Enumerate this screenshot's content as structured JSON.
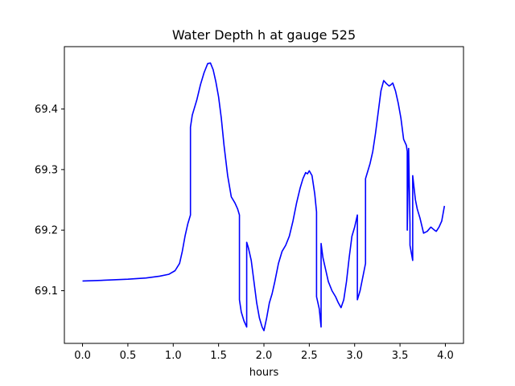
{
  "chart_data": {
    "type": "line",
    "title": "Water Depth h at gauge 525",
    "xlabel": "hours",
    "ylabel": "",
    "xlim": [
      -0.2,
      4.2
    ],
    "ylim": [
      69.013,
      69.503
    ],
    "xticks": [
      0.0,
      0.5,
      1.0,
      1.5,
      2.0,
      2.5,
      3.0,
      3.5,
      4.0
    ],
    "xtick_labels": [
      "0.0",
      "0.5",
      "1.0",
      "1.5",
      "2.0",
      "2.5",
      "3.0",
      "3.5",
      "4.0"
    ],
    "yticks": [
      69.1,
      69.2,
      69.3,
      69.4
    ],
    "ytick_labels": [
      "69.1",
      "69.2",
      "69.3",
      "69.4"
    ],
    "grid": false,
    "legend": false,
    "series": [
      {
        "color": "#0000ff",
        "x": [
          0.0,
          0.2,
          0.5,
          0.7,
          0.85,
          0.95,
          1.02,
          1.07,
          1.1,
          1.13,
          1.16,
          1.19,
          1.19,
          1.21,
          1.23,
          1.26,
          1.3,
          1.34,
          1.38,
          1.41,
          1.44,
          1.47,
          1.5,
          1.53,
          1.56,
          1.6,
          1.64,
          1.68,
          1.71,
          1.73,
          1.73,
          1.75,
          1.78,
          1.81,
          1.81,
          1.83,
          1.86,
          1.89,
          1.92,
          1.95,
          1.98,
          2.0,
          2.03,
          2.06,
          2.09,
          2.12,
          2.16,
          2.2,
          2.24,
          2.28,
          2.32,
          2.36,
          2.4,
          2.43,
          2.46,
          2.48,
          2.5,
          2.53,
          2.56,
          2.58,
          2.58,
          2.61,
          2.63,
          2.63,
          2.65,
          2.68,
          2.71,
          2.75,
          2.79,
          2.82,
          2.85,
          2.88,
          2.91,
          2.94,
          2.97,
          3.0,
          3.03,
          3.03,
          3.06,
          3.1,
          3.12,
          3.12,
          3.14,
          3.17,
          3.2,
          3.23,
          3.26,
          3.29,
          3.32,
          3.35,
          3.38,
          3.4,
          3.42,
          3.45,
          3.48,
          3.51,
          3.54,
          3.57,
          3.58,
          3.58,
          3.595,
          3.61,
          3.61,
          3.64,
          3.64,
          3.655,
          3.67,
          3.69,
          3.72,
          3.76,
          3.8,
          3.84,
          3.88,
          3.9,
          3.93,
          3.96,
          3.99
        ],
        "values": [
          69.116,
          69.117,
          69.119,
          69.121,
          69.124,
          69.127,
          69.133,
          69.145,
          69.165,
          69.19,
          69.21,
          69.225,
          69.37,
          69.39,
          69.4,
          69.415,
          69.44,
          69.46,
          69.475,
          69.476,
          69.465,
          69.445,
          69.42,
          69.385,
          69.34,
          69.29,
          69.255,
          69.245,
          69.235,
          69.225,
          69.085,
          69.065,
          69.05,
          69.04,
          69.18,
          69.17,
          69.15,
          69.115,
          69.08,
          69.055,
          69.04,
          69.034,
          69.055,
          69.08,
          69.095,
          69.115,
          69.145,
          69.165,
          69.175,
          69.19,
          69.215,
          69.245,
          69.27,
          69.285,
          69.295,
          69.293,
          69.298,
          69.29,
          69.26,
          69.23,
          69.09,
          69.07,
          69.04,
          69.178,
          69.155,
          69.135,
          69.115,
          69.1,
          69.09,
          69.08,
          69.072,
          69.085,
          69.115,
          69.155,
          69.19,
          69.205,
          69.225,
          69.085,
          69.1,
          69.13,
          69.145,
          69.285,
          69.295,
          69.31,
          69.33,
          69.36,
          69.395,
          69.43,
          69.447,
          69.442,
          69.438,
          69.44,
          69.443,
          69.43,
          69.41,
          69.385,
          69.35,
          69.34,
          69.33,
          69.2,
          69.335,
          69.21,
          69.175,
          69.15,
          69.29,
          69.27,
          69.25,
          69.235,
          69.22,
          69.195,
          69.198,
          69.205,
          69.2,
          69.198,
          69.205,
          69.215,
          69.24
        ]
      }
    ]
  }
}
